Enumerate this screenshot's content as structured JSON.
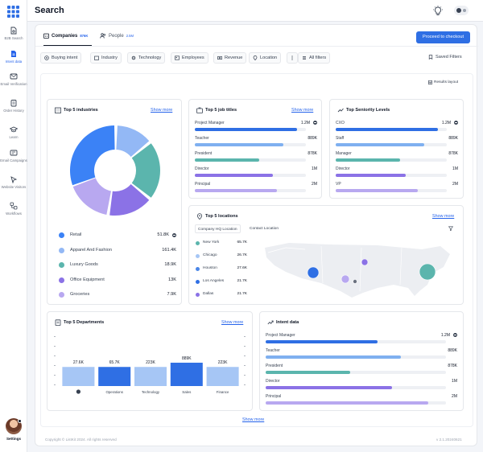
{
  "sidebar": {
    "items": [
      {
        "label": "B2B Search",
        "icon": "document-search-icon"
      },
      {
        "label": "Intent data",
        "icon": "intent-data-icon"
      },
      {
        "label": "Email Verification",
        "icon": "envelope-icon"
      },
      {
        "label": "Order History",
        "icon": "clipboard-icon"
      },
      {
        "label": "Learn",
        "icon": "graduation-cap-icon"
      },
      {
        "label": "Email Campaigns",
        "icon": "campaign-icon"
      },
      {
        "label": "Website Visitors",
        "icon": "website-visitors-icon"
      },
      {
        "label": "Workflows",
        "icon": "workflow-icon"
      }
    ],
    "settings_label": "Settings"
  },
  "header": {
    "title": "Search"
  },
  "tabs": [
    {
      "label": "Companies",
      "count": "876K"
    },
    {
      "label": "People",
      "count": "2.5M"
    }
  ],
  "checkout_label": "Proceed to checkout",
  "filters": [
    {
      "label": "Buying intent",
      "icon": "target-icon"
    },
    {
      "label": "Industry",
      "icon": "building-icon"
    },
    {
      "label": "Technology",
      "icon": "gear-icon"
    },
    {
      "label": "Employees",
      "icon": "people-icon"
    },
    {
      "label": "Revenue",
      "icon": "money-icon"
    },
    {
      "label": "Location",
      "icon": "pin-icon"
    }
  ],
  "all_filters_label": "All filters",
  "saved_filters_label": "Saved Filters",
  "results_layout_label": "Results layout",
  "show_more": "Show more",
  "industries": {
    "title": "Top 5 industries",
    "items": [
      {
        "name": "Retail",
        "value": "51.8K",
        "color": "#3b82f6"
      },
      {
        "name": "Apparel And Fashion",
        "value": "161.4K",
        "color": "#93b8f5"
      },
      {
        "name": "Luxury Goods",
        "value": "18.9K",
        "color": "#5bb5ad"
      },
      {
        "name": "Office Equipment",
        "value": "13K",
        "color": "#8b72e6"
      },
      {
        "name": "Groceries",
        "value": "7.9K",
        "color": "#b8a8f0"
      }
    ]
  },
  "job_titles": {
    "title": "Top 5 job titles",
    "items": [
      {
        "name": "Project Manager",
        "value": "1.2M",
        "fraction": 0.92,
        "color": "#2f6fe4"
      },
      {
        "name": "Teacher",
        "value": "889K",
        "fraction": 0.8,
        "color": "#7fb0f0"
      },
      {
        "name": "President",
        "value": "878K",
        "fraction": 0.58,
        "color": "#5bb5ad"
      },
      {
        "name": "Director",
        "value": "1M",
        "fraction": 0.7,
        "color": "#8b72e6"
      },
      {
        "name": "Principal",
        "value": "2M",
        "fraction": 0.74,
        "color": "#b8a8f0"
      }
    ]
  },
  "seniority": {
    "title": "Top Seniority Levels",
    "items": [
      {
        "name": "CXO",
        "value": "1.2M",
        "fraction": 0.92,
        "color": "#2f6fe4"
      },
      {
        "name": "Staff",
        "value": "889K",
        "fraction": 0.8,
        "color": "#7fb0f0"
      },
      {
        "name": "Manager",
        "value": "878K",
        "fraction": 0.58,
        "color": "#5bb5ad"
      },
      {
        "name": "Director",
        "value": "1M",
        "fraction": 0.63,
        "color": "#8b72e6"
      },
      {
        "name": "VP",
        "value": "2M",
        "fraction": 0.74,
        "color": "#b8a8f0"
      }
    ]
  },
  "locations": {
    "title": "Top 5 locations",
    "tabs": [
      "Company HQ Location",
      "Contact Location"
    ],
    "items": [
      {
        "name": "New York",
        "value": "65.7K",
        "color": "#5bb5ad"
      },
      {
        "name": "Chicago",
        "value": "26.7K",
        "color": "#a6c6f5"
      },
      {
        "name": "Houston",
        "value": "27.6K",
        "color": "#4a86e8"
      },
      {
        "name": "Los Angeles",
        "value": "21.7K",
        "color": "#2f6fe4"
      },
      {
        "name": "Dallas",
        "value": "21.7K",
        "color": "#8b72e6"
      }
    ]
  },
  "departments": {
    "title": "Top 5 Departments",
    "chart_data": {
      "type": "bar",
      "categories": [
        "",
        "Operations",
        "Technology",
        "Sales",
        "Finance"
      ],
      "values": [
        27.6,
        65.7,
        223,
        889,
        223
      ],
      "data_labels": [
        "27.6K",
        "65.7K",
        "223K",
        "889K",
        "223K"
      ],
      "colors": [
        "#a6c6f5",
        "#2f6fe4",
        "#a6c6f5",
        "#2f6fe4",
        "#a6c6f5"
      ]
    }
  },
  "intent": {
    "title": "Intent data",
    "items": [
      {
        "name": "Project Manager",
        "value": "1.2M",
        "fraction": 0.62,
        "color": "#2f6fe4"
      },
      {
        "name": "Teacher",
        "value": "889K",
        "fraction": 0.75,
        "color": "#7fb0f0"
      },
      {
        "name": "President",
        "value": "878K",
        "fraction": 0.47,
        "color": "#5bb5ad"
      },
      {
        "name": "Director",
        "value": "1M",
        "fraction": 0.7,
        "color": "#8b72e6"
      },
      {
        "name": "Principal",
        "value": "2M",
        "fraction": 0.9,
        "color": "#b8a8f0"
      }
    ]
  },
  "footer": {
    "copyright": "Copyright © ListKit 2024. All rights reserved",
    "version": "v 2.1.20240621"
  }
}
